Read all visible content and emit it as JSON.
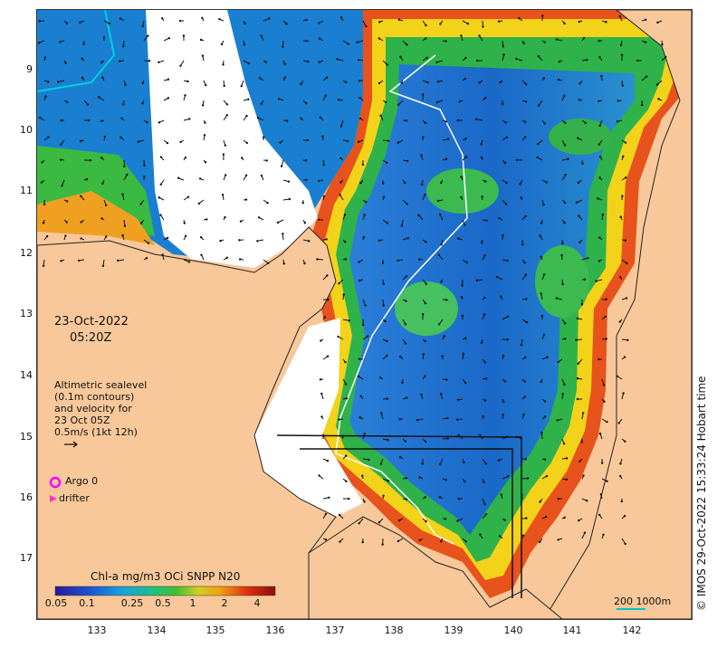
{
  "date_text": "23-Oct-2022",
  "time_text": "05:20Z",
  "altimetry_lines": [
    "Altimetric sealevel",
    "(0.1m contours)",
    "and velocity for",
    "23 Oct 05Z",
    "0.5m/s (1kt 12h)"
  ],
  "argo_label": "Argo 0",
  "drifter_label": "drifter",
  "colorbar_title": "Chl-a mg/m3 OCi SNPP N20",
  "colorbar_ticks": [
    "0.05",
    "0.1",
    "0.25",
    "0.5",
    "1",
    "2",
    "4"
  ],
  "scale_label": "200  1000m",
  "credit": "© IMOS 29-Oct-2022 15:33:24 Hobart time",
  "lat_ticks": [
    "9",
    "10",
    "11",
    "12",
    "13",
    "14",
    "15",
    "16",
    "17"
  ],
  "lon_ticks": [
    "133",
    "134",
    "135",
    "136",
    "137",
    "138",
    "139",
    "140",
    "141",
    "142"
  ],
  "colors": {
    "land": "#f8c89a",
    "coast": "#222222",
    "argo": "#ff00ff",
    "drifter": "#ff33cc",
    "isobath": "#ffffff",
    "scale_line": "#00c8c8"
  }
}
